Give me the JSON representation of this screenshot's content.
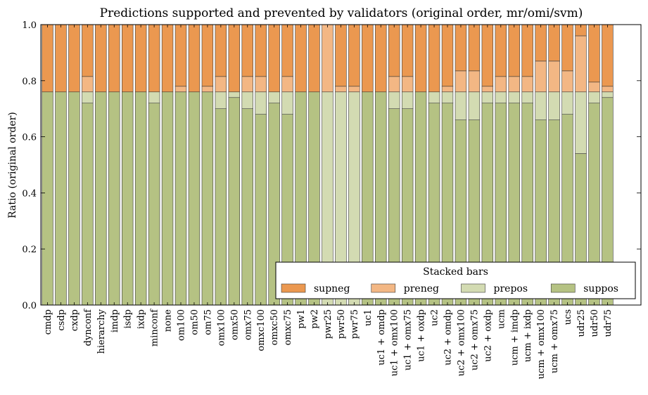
{
  "chart_data": {
    "type": "bar",
    "stacked": true,
    "title": "Predictions supported and prevented by validators (original order, mr/omi/svm)",
    "xlabel": "",
    "ylabel": "Ratio (original order)",
    "ylim": [
      0,
      1.0
    ],
    "yticks": [
      "0.0",
      "0.2",
      "0.4",
      "0.6",
      "0.8",
      "1.0"
    ],
    "grid": false,
    "legend": {
      "title": "Stacked bars",
      "placement": "bottom-right",
      "entries": [
        "supneg",
        "preneg",
        "prepos",
        "suppos"
      ]
    },
    "categories": [
      "cmdp",
      "csdp",
      "cxdp",
      "dynconf",
      "hierarchy",
      "imdp",
      "isdp",
      "ixdp",
      "minconf",
      "none",
      "om100",
      "om50",
      "om75",
      "omx100",
      "omx50",
      "omx75",
      "omxc100",
      "omxc50",
      "omxc75",
      "pw1",
      "pw2",
      "pwr25",
      "pwr50",
      "pwr75",
      "uc1",
      "uc1 + omdp",
      "uc1 + omx100",
      "uc1 + omx75",
      "uc1 + oxdp",
      "uc2",
      "uc2 + omdp",
      "uc2 + omx100",
      "uc2 + omx75",
      "uc2 + oxdp",
      "ucm",
      "ucm + imdp",
      "ucm + ixdp",
      "ucm + omx100",
      "ucm + omx75",
      "ucs",
      "udr25",
      "udr50",
      "udr75"
    ],
    "series": [
      {
        "name": "suppos",
        "color": "#b5c283",
        "values": [
          0.76,
          0.76,
          0.76,
          0.72,
          0.76,
          0.76,
          0.76,
          0.76,
          0.72,
          0.76,
          0.76,
          0.76,
          0.76,
          0.7,
          0.74,
          0.7,
          0.68,
          0.72,
          0.68,
          0.76,
          0.76,
          0.0,
          0.0,
          0.0,
          0.76,
          0.76,
          0.7,
          0.7,
          0.76,
          0.72,
          0.72,
          0.66,
          0.66,
          0.72,
          0.72,
          0.72,
          0.72,
          0.66,
          0.66,
          0.68,
          0.54,
          0.72,
          0.74
        ]
      },
      {
        "name": "prepos",
        "color": "#d3dbb2",
        "values": [
          0.0,
          0.0,
          0.0,
          0.04,
          0.0,
          0.0,
          0.0,
          0.0,
          0.04,
          0.0,
          0.0,
          0.0,
          0.0,
          0.06,
          0.02,
          0.06,
          0.08,
          0.04,
          0.08,
          0.0,
          0.0,
          0.76,
          0.76,
          0.76,
          0.0,
          0.0,
          0.06,
          0.06,
          0.0,
          0.04,
          0.04,
          0.1,
          0.1,
          0.04,
          0.04,
          0.04,
          0.04,
          0.1,
          0.1,
          0.08,
          0.22,
          0.04,
          0.02
        ]
      },
      {
        "name": "preneg",
        "color": "#f3b784",
        "values": [
          0.0,
          0.0,
          0.0,
          0.055,
          0.0,
          0.0,
          0.0,
          0.0,
          0.0,
          0.0,
          0.02,
          0.0,
          0.02,
          0.055,
          0.0,
          0.055,
          0.055,
          0.0,
          0.055,
          0.0,
          0.0,
          0.24,
          0.02,
          0.02,
          0.0,
          0.0,
          0.055,
          0.055,
          0.0,
          0.0,
          0.02,
          0.075,
          0.075,
          0.02,
          0.055,
          0.055,
          0.055,
          0.11,
          0.11,
          0.075,
          0.2,
          0.035,
          0.02
        ]
      },
      {
        "name": "supneg",
        "color": "#eb9850",
        "values": [
          0.24,
          0.24,
          0.24,
          0.185,
          0.24,
          0.24,
          0.24,
          0.24,
          0.24,
          0.24,
          0.22,
          0.24,
          0.22,
          0.185,
          0.24,
          0.185,
          0.185,
          0.24,
          0.185,
          0.24,
          0.24,
          0.0,
          0.22,
          0.22,
          0.24,
          0.24,
          0.185,
          0.185,
          0.24,
          0.24,
          0.22,
          0.165,
          0.165,
          0.22,
          0.185,
          0.185,
          0.185,
          0.13,
          0.13,
          0.165,
          0.04,
          0.205,
          0.22
        ]
      }
    ]
  }
}
